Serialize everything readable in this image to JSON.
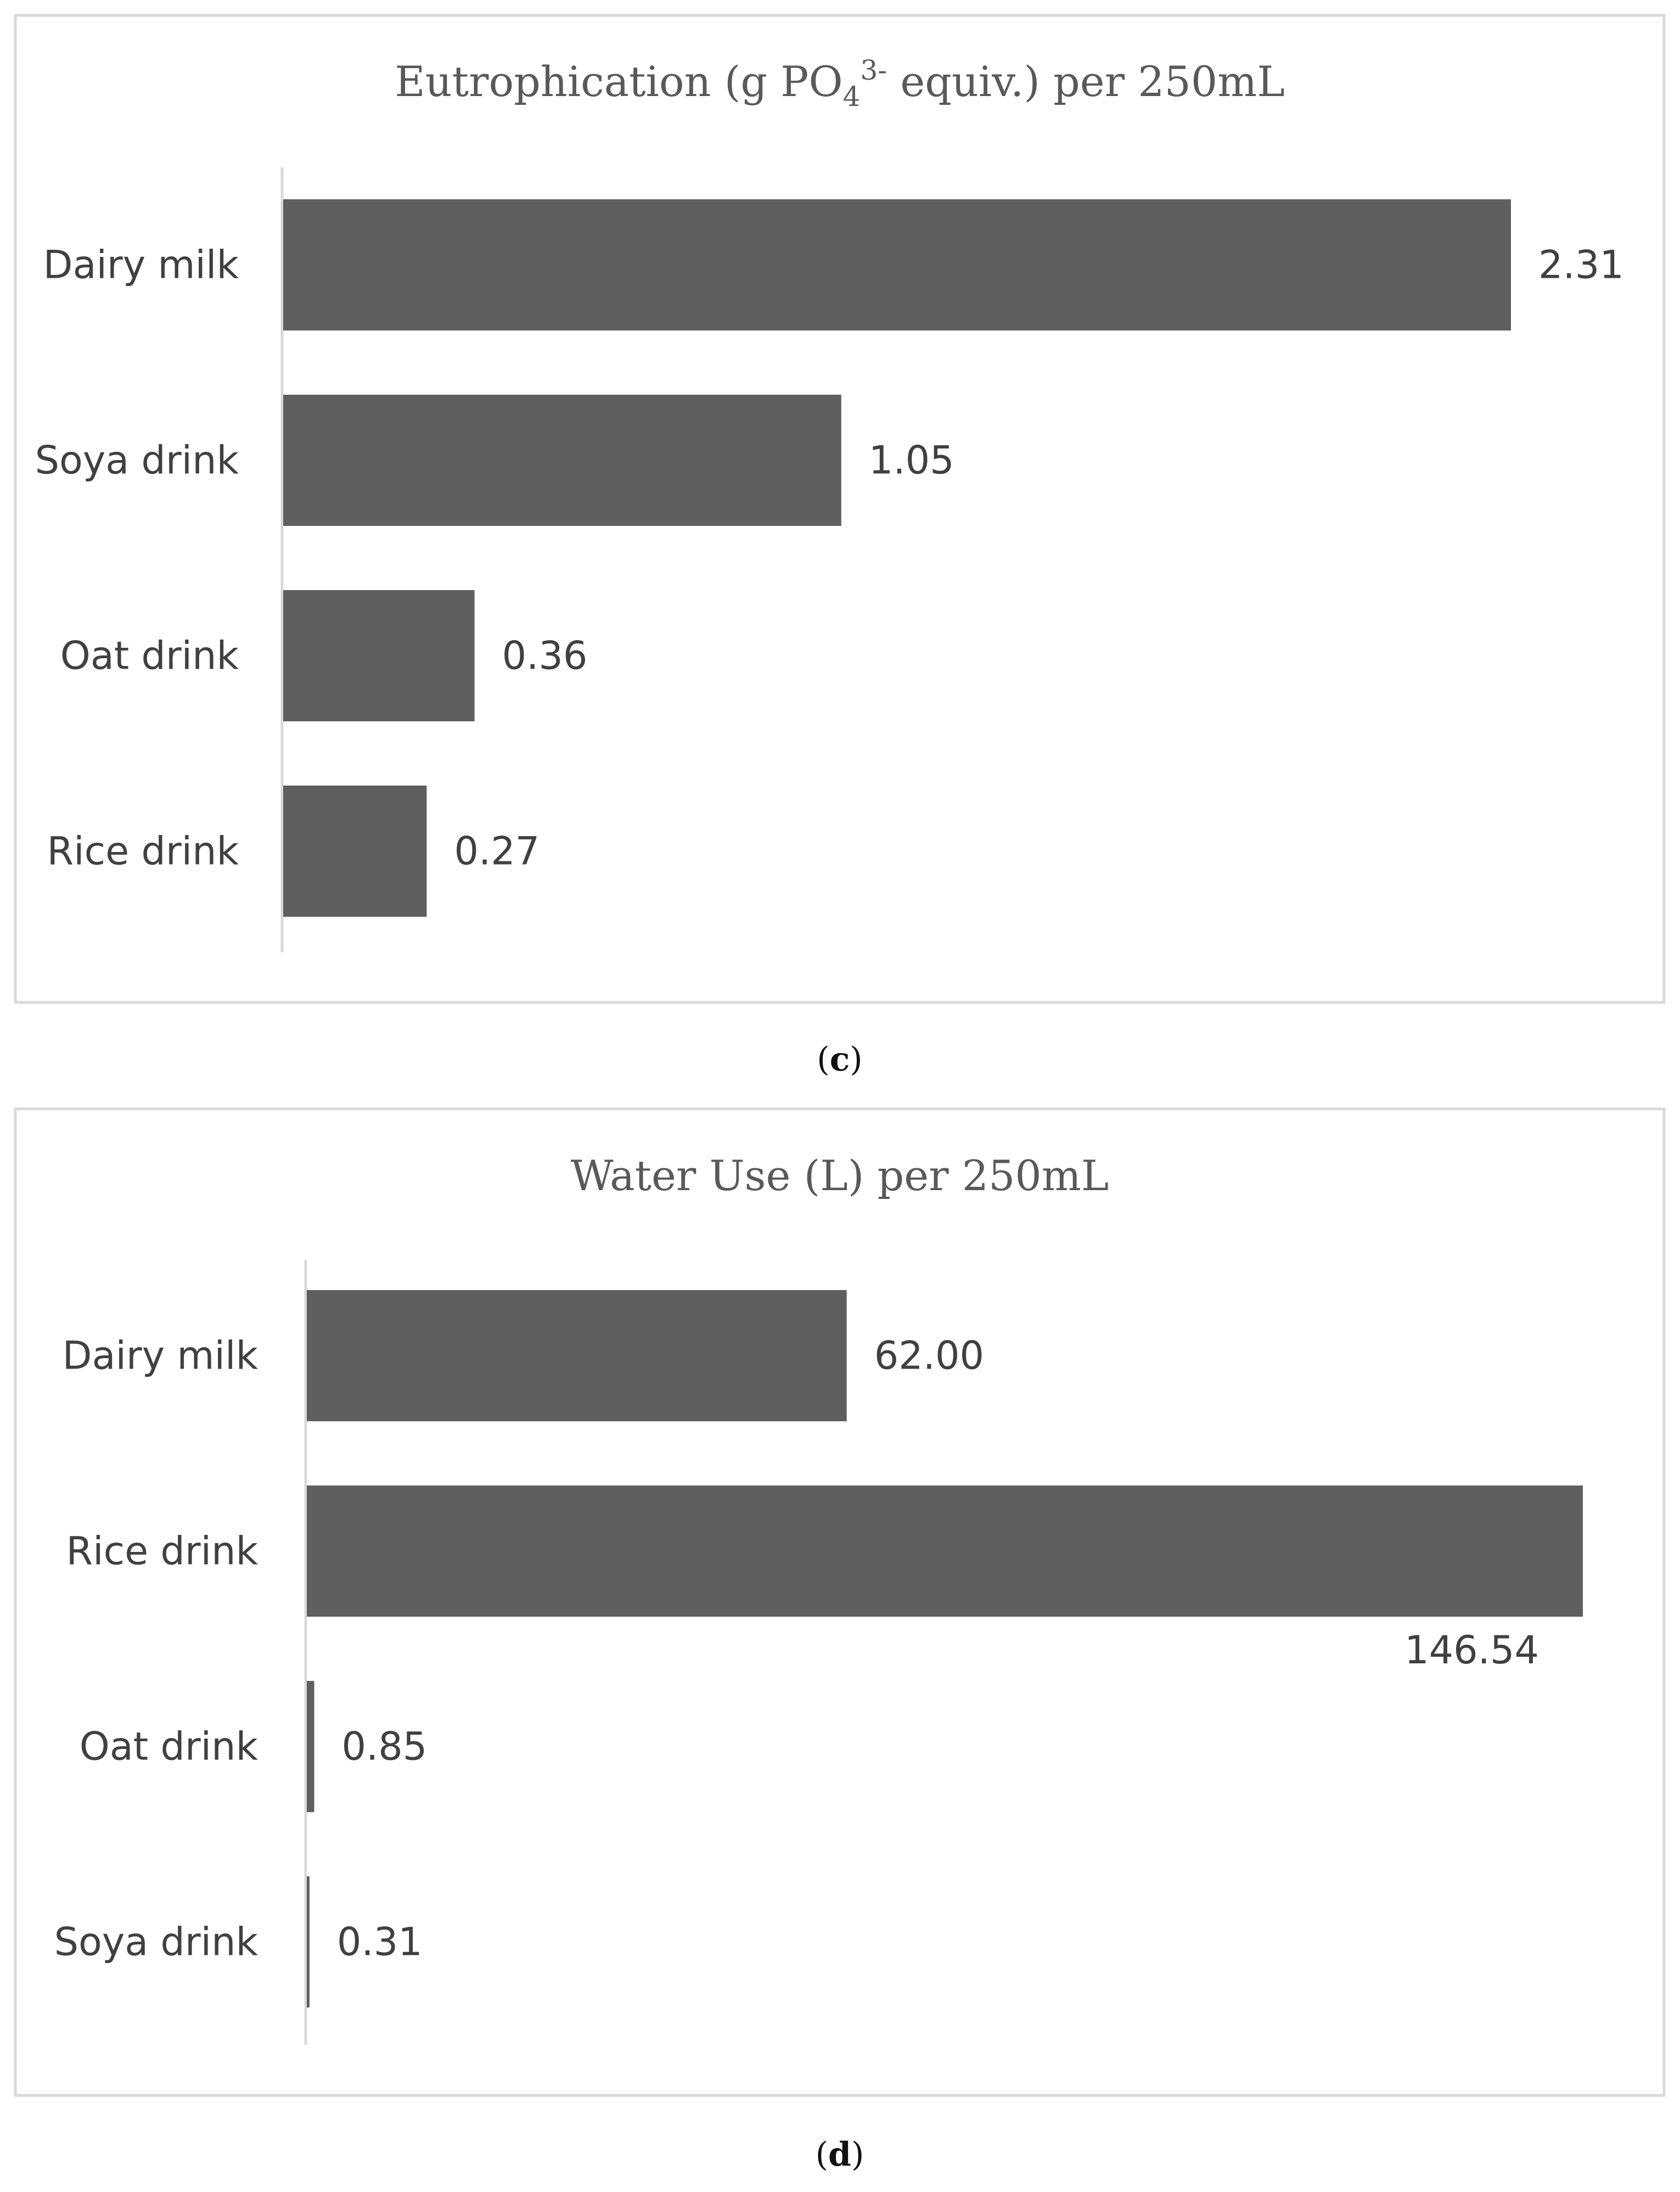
{
  "chart_data": [
    {
      "type": "bar",
      "orientation": "horizontal",
      "title": {
        "main": "Eutrophication (g PO",
        "sub": "4",
        "sup": "3-",
        "rest": " equiv.) per 250mL"
      },
      "categories": [
        "Dairy milk",
        "Soya drink",
        "Oat drink",
        "Rice drink"
      ],
      "values": [
        2.31,
        1.05,
        0.36,
        0.27
      ],
      "value_labels": [
        "2.31",
        "1.05",
        "0.36",
        "0.27"
      ],
      "xlim": [
        0,
        2.31
      ],
      "bar_color": "#5f5f5f",
      "grid": false,
      "panel_caption": "c"
    },
    {
      "type": "bar",
      "orientation": "horizontal",
      "title": {
        "main": "Water Use (L) per 250mL"
      },
      "categories": [
        "Dairy milk",
        "Rice drink",
        "Oat drink",
        "Soya drink"
      ],
      "values": [
        62.0,
        146.54,
        0.85,
        0.31
      ],
      "value_labels": [
        "62.00",
        "146.54",
        "0.85",
        "0.31"
      ],
      "xlim": [
        0,
        146.54
      ],
      "bar_color": "#5f5f5f",
      "grid": false,
      "panel_caption": "d"
    }
  ]
}
